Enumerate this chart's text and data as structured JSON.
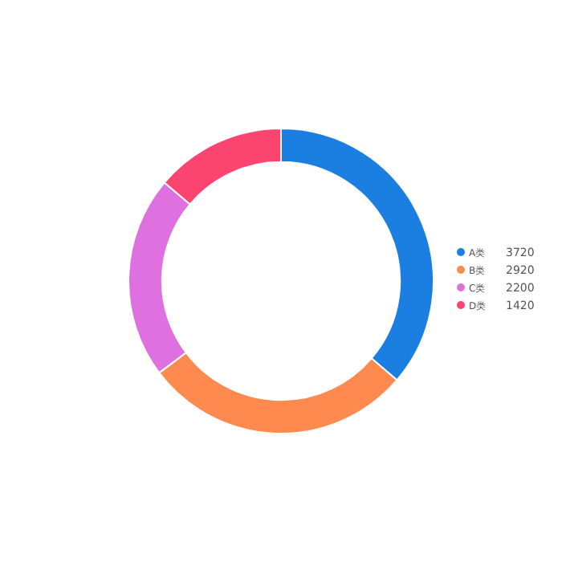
{
  "chart_data": {
    "type": "donut",
    "categories": [
      "A类",
      "B类",
      "C类",
      "D类"
    ],
    "values": [
      3720,
      2920,
      2200,
      1420
    ],
    "colors": [
      "#1a7fe0",
      "#ff8a50",
      "#df70e0",
      "#fb4570"
    ],
    "legend": "right",
    "data_labels": true
  }
}
